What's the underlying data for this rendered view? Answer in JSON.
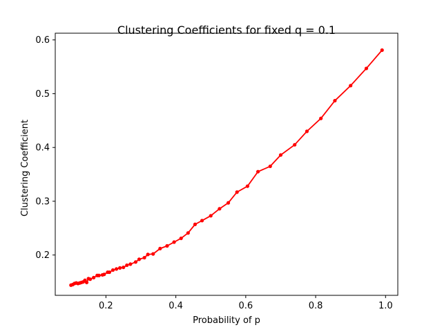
{
  "chart_data": {
    "type": "line",
    "title": "Clustering Coefficients for fixed q = 0.1",
    "xlabel": "Probability of p",
    "ylabel": "Clustering Coefficient",
    "xlim": [
      0.055,
      1.035
    ],
    "ylim": [
      0.125,
      0.6125
    ],
    "xticks": [
      0.2,
      0.4,
      0.6,
      0.8,
      1.0
    ],
    "xtick_labels": [
      "0.2",
      "0.4",
      "0.6",
      "0.8",
      "1.0"
    ],
    "yticks": [
      0.2,
      0.3,
      0.4,
      0.5,
      0.6
    ],
    "ytick_labels": [
      "0.2",
      "0.3",
      "0.4",
      "0.5",
      "0.6"
    ],
    "grid": false,
    "series": [
      {
        "color": "#ff0000",
        "marker": "circle",
        "x": [
          0.1,
          0.105,
          0.11,
          0.115,
          0.12,
          0.125,
          0.13,
          0.135,
          0.14,
          0.145,
          0.15,
          0.155,
          0.165,
          0.175,
          0.18,
          0.19,
          0.195,
          0.205,
          0.21,
          0.22,
          0.23,
          0.24,
          0.25,
          0.26,
          0.27,
          0.285,
          0.295,
          0.31,
          0.32,
          0.335,
          0.355,
          0.375,
          0.395,
          0.415,
          0.435,
          0.455,
          0.475,
          0.5,
          0.525,
          0.55,
          0.575,
          0.605,
          0.635,
          0.67,
          0.7,
          0.74,
          0.775,
          0.815,
          0.855,
          0.9,
          0.945,
          0.99
        ],
        "y": [
          0.144,
          0.145,
          0.147,
          0.148,
          0.147,
          0.148,
          0.149,
          0.15,
          0.153,
          0.149,
          0.156,
          0.155,
          0.158,
          0.162,
          0.162,
          0.163,
          0.164,
          0.168,
          0.168,
          0.172,
          0.174,
          0.176,
          0.177,
          0.181,
          0.183,
          0.187,
          0.192,
          0.195,
          0.201,
          0.202,
          0.212,
          0.217,
          0.224,
          0.231,
          0.241,
          0.257,
          0.264,
          0.273,
          0.286,
          0.297,
          0.317,
          0.328,
          0.355,
          0.365,
          0.386,
          0.405,
          0.43,
          0.454,
          0.487,
          0.515,
          0.547,
          0.581
        ]
      }
    ]
  }
}
